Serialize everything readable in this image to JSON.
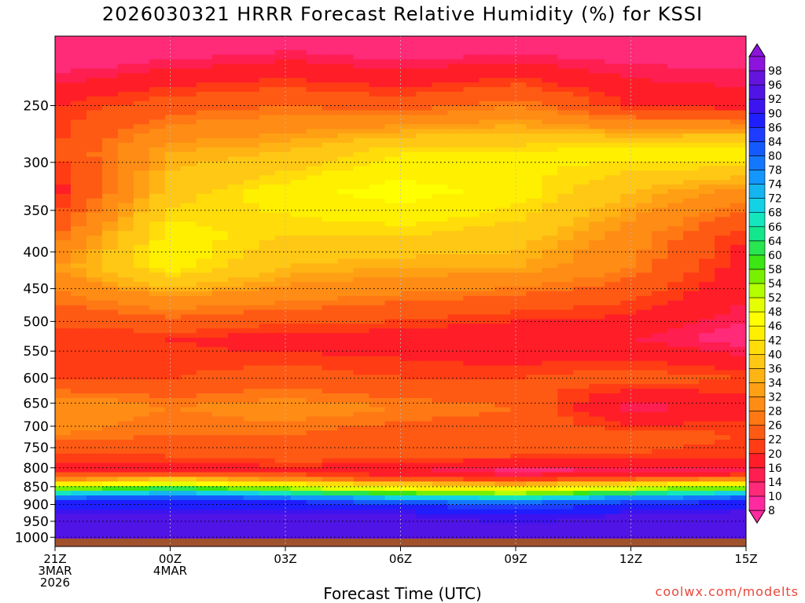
{
  "title": "2026030321 HRRR Forecast Relative Humidity (%) for KSSI",
  "xlabel": "Forecast Time (UTC)",
  "credit": "coolwx.com/modelts",
  "chart_data": {
    "type": "heatmap",
    "title": "2026030321 HRRR Forecast Relative Humidity (%) for KSSI",
    "xlabel": "Forecast Time (UTC)",
    "ylabel": "",
    "x_ticks": [
      {
        "hour": 0,
        "lines": [
          "21Z",
          "3MAR",
          "2026"
        ]
      },
      {
        "hour": 3,
        "lines": [
          "00Z",
          "4MAR"
        ]
      },
      {
        "hour": 6,
        "lines": [
          "03Z"
        ]
      },
      {
        "hour": 9,
        "lines": [
          "06Z"
        ]
      },
      {
        "hour": 12,
        "lines": [
          "09Z"
        ]
      },
      {
        "hour": 15,
        "lines": [
          "12Z"
        ]
      },
      {
        "hour": 18,
        "lines": [
          "15Z"
        ]
      }
    ],
    "xlim_hours": [
      0,
      18
    ],
    "y_ticks": [
      250,
      300,
      350,
      400,
      450,
      500,
      550,
      600,
      650,
      700,
      750,
      800,
      850,
      900,
      950,
      1000
    ],
    "ylim_hPa": [
      200,
      1030
    ],
    "y_scale": "log",
    "colorbar": {
      "levels": [
        8,
        10,
        14,
        16,
        20,
        22,
        26,
        28,
        32,
        34,
        36,
        40,
        42,
        46,
        48,
        52,
        54,
        58,
        60,
        64,
        66,
        68,
        72,
        74,
        78,
        80,
        84,
        86,
        90,
        92,
        96,
        98
      ],
      "colors": [
        "#ff2aa0",
        "#ff2a78",
        "#ff1e50",
        "#ff1e28",
        "#ff3c14",
        "#ff5a14",
        "#ff7814",
        "#ff8c14",
        "#ffa014",
        "#ffb414",
        "#ffc814",
        "#ffdc0a",
        "#fff000",
        "#ffff00",
        "#e6ff00",
        "#b4ff00",
        "#78f000",
        "#3ce614",
        "#28e650",
        "#14e68c",
        "#14e6be",
        "#14d2e6",
        "#14b4f0",
        "#1496ff",
        "#1478ff",
        "#145aff",
        "#1e3cff",
        "#1e1eff",
        "#3c14f0",
        "#5014e6",
        "#6414dc",
        "#8c14dc"
      ]
    },
    "levels_hPa": [
      210,
      250,
      290,
      330,
      380,
      420,
      470,
      530,
      600,
      660,
      720,
      770,
      810,
      830,
      845,
      860,
      875,
      890,
      910,
      930,
      960,
      1000,
      1020
    ],
    "rh_times_hours": [
      0,
      3,
      6,
      9,
      12,
      15,
      18
    ],
    "rh_percent": [
      [
        10,
        12,
        14,
        12,
        13,
        12,
        12
      ],
      [
        20,
        24,
        26,
        24,
        28,
        20,
        18
      ],
      [
        22,
        34,
        36,
        42,
        42,
        44,
        46
      ],
      [
        18,
        38,
        44,
        48,
        44,
        36,
        30
      ],
      [
        26,
        44,
        40,
        40,
        38,
        30,
        20
      ],
      [
        32,
        44,
        36,
        34,
        34,
        28,
        18
      ],
      [
        26,
        30,
        28,
        26,
        24,
        22,
        16
      ],
      [
        20,
        20,
        18,
        18,
        16,
        16,
        12
      ],
      [
        22,
        22,
        24,
        22,
        22,
        24,
        22
      ],
      [
        32,
        28,
        30,
        28,
        26,
        14,
        18
      ],
      [
        28,
        26,
        26,
        24,
        24,
        24,
        22
      ],
      [
        22,
        22,
        24,
        24,
        22,
        22,
        20
      ],
      [
        18,
        16,
        18,
        16,
        12,
        14,
        14
      ],
      [
        30,
        38,
        30,
        24,
        20,
        26,
        30
      ],
      [
        46,
        52,
        46,
        40,
        36,
        44,
        48
      ],
      [
        60,
        66,
        58,
        50,
        46,
        56,
        62
      ],
      [
        74,
        80,
        74,
        66,
        60,
        70,
        78
      ],
      [
        86,
        88,
        86,
        80,
        76,
        84,
        86
      ],
      [
        90,
        90,
        90,
        88,
        86,
        88,
        90
      ],
      [
        92,
        92,
        92,
        92,
        90,
        92,
        94
      ],
      [
        94,
        94,
        94,
        94,
        92,
        94,
        94
      ],
      [
        96,
        96,
        96,
        96,
        96,
        96,
        96
      ],
      [
        97,
        97,
        97,
        97,
        97,
        97,
        97
      ]
    ],
    "grid": "dotted"
  }
}
